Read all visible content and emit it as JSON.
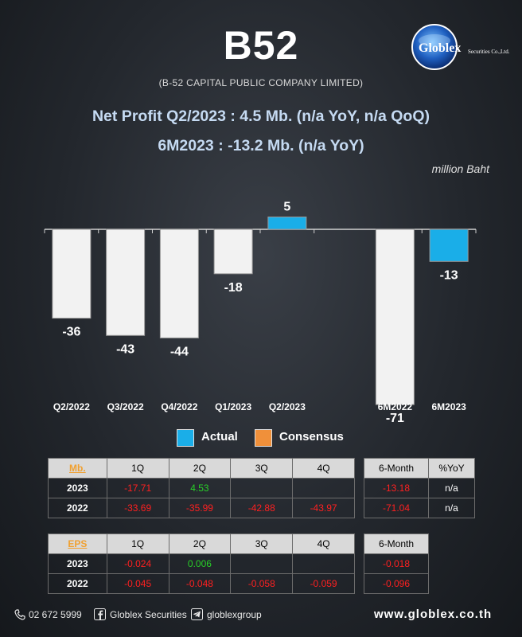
{
  "header": {
    "ticker": "B52",
    "company": "(B-52 CAPITAL PUBLIC COMPANY LIMITED)",
    "logo_text": "Globlex",
    "logo_subtext": "Securities Co.,Ltd.",
    "net_profit_line1": "Net Profit  Q2/2023 : 4.5 Mb. (n/a YoY, n/a QoQ)",
    "net_profit_line2": "6M2023 : -13.2 Mb. (n/a YoY)",
    "unit": "million Baht"
  },
  "chart_data": {
    "type": "bar",
    "categories": [
      "Q2/2022",
      "Q3/2022",
      "Q4/2022",
      "Q1/2023",
      "Q2/2023",
      "",
      "6M2022",
      "6M2023"
    ],
    "series": [
      {
        "name": "Actual",
        "values": [
          -36,
          -43,
          -44,
          -18,
          5,
          null,
          -71,
          -13
        ]
      }
    ],
    "data_labels": [
      "-36",
      "-43",
      "-44",
      "-18",
      "5",
      "",
      "-71",
      "-13"
    ],
    "highlight_categories": [
      "Q2/2023",
      "6M2023"
    ],
    "ylim": [
      -75,
      8
    ],
    "grid": false,
    "legend": {
      "position": "bottom",
      "entries": [
        "Actual",
        "Consensus"
      ]
    },
    "colors": {
      "default_bar": "#f2f2f2",
      "highlight_bar": "#1aaee8",
      "consensus": "#f0903a"
    }
  },
  "profit_table": {
    "headers": [
      "Mb.",
      "1Q",
      "2Q",
      "3Q",
      "4Q"
    ],
    "summary_headers": [
      "6-Month",
      "%YoY"
    ],
    "rows": [
      {
        "year": "2023",
        "q": [
          "-17.71",
          "4.53",
          "",
          ""
        ],
        "six_month": "-13.18",
        "yoy": "n/a"
      },
      {
        "year": "2022",
        "q": [
          "-33.69",
          "-35.99",
          "-42.88",
          "-43.97"
        ],
        "six_month": "-71.04",
        "yoy": "n/a"
      }
    ]
  },
  "eps_table": {
    "headers": [
      "EPS",
      "1Q",
      "2Q",
      "3Q",
      "4Q"
    ],
    "summary_headers": [
      "6-Month"
    ],
    "rows": [
      {
        "year": "2023",
        "q": [
          "-0.024",
          "0.006",
          "",
          ""
        ],
        "six_month": "-0.018"
      },
      {
        "year": "2022",
        "q": [
          "-0.045",
          "-0.048",
          "-0.058",
          "-0.059"
        ],
        "six_month": "-0.096"
      }
    ]
  },
  "footer": {
    "phone": "02 672 5999",
    "facebook": "Globlex Securities",
    "telegram": "globlexgroup",
    "website": "www.globlex.co.th"
  }
}
